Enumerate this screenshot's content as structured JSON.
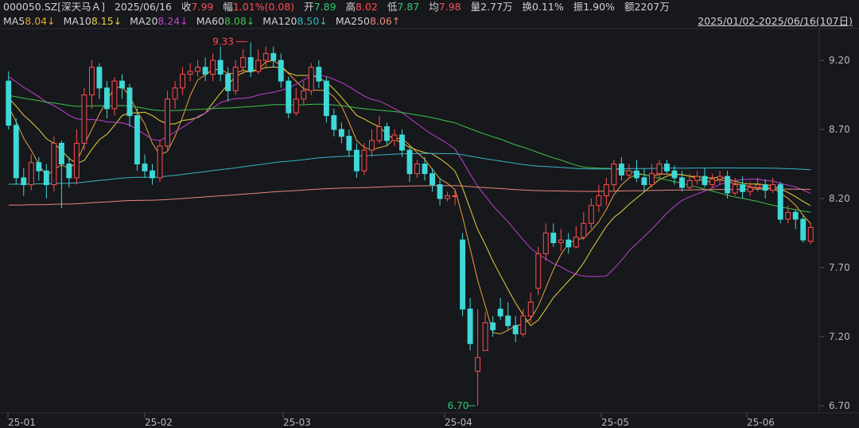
{
  "header": {
    "code": "000050.SZ[深天马Ａ]",
    "date": "2025/06/16",
    "close_label": "收",
    "close_value": "7.99",
    "change_label": "幅",
    "change_value": "1.01%(0.08)",
    "open_label": "开",
    "open_value": "7.89",
    "high_label": "高",
    "high_value": "8.02",
    "low_label": "低",
    "low_value": "7.87",
    "avg_label": "均",
    "avg_value": "7.98",
    "volume_label": "量",
    "volume_value": "2.77万",
    "turnover_label": "换",
    "turnover_value": "0.11%",
    "amplitude_label": "振",
    "amplitude_value": "1.90%",
    "amount_label": "额",
    "amount_value": "2207万"
  },
  "ma_legend": [
    {
      "name": "MA5",
      "value": "8.04↓",
      "color": "#e8a23a"
    },
    {
      "name": "MA10",
      "value": "8.15↓",
      "color": "#e6d23c"
    },
    {
      "name": "MA20",
      "value": "8.24↓",
      "color": "#c23fd0"
    },
    {
      "name": "MA60",
      "value": "8.08↓",
      "color": "#3ec24a"
    },
    {
      "name": "MA120",
      "value": "8.50↓",
      "color": "#35b6c8"
    },
    {
      "name": "MA250",
      "value": "8.06↑",
      "color": "#e8887a"
    }
  ],
  "date_range": "2025/01/02-2025/06/16(107日)",
  "colors": {
    "up": "#ff4d4f",
    "down": "#3fd8d8",
    "background": "#17181c",
    "grid": "#2a2c31"
  },
  "chart_data": {
    "type": "candlestick",
    "x_ticks": [
      "25-01",
      "25-02",
      "25-03",
      "25-04",
      "25-05",
      "25-06"
    ],
    "y_ticks": [
      "9.20",
      "8.70",
      "8.20",
      "7.70",
      "7.20",
      "6.70"
    ],
    "ylim": [
      6.68,
      9.35
    ],
    "annotations": [
      {
        "label": "9.33",
        "value": 9.33,
        "type": "high"
      },
      {
        "label": "6.70",
        "value": 6.7,
        "type": "low"
      }
    ],
    "candles": [
      [
        9.05,
        8.73,
        9.12,
        8.7
      ],
      [
        8.73,
        8.35,
        8.78,
        8.3
      ],
      [
        8.35,
        8.3,
        8.42,
        8.22
      ],
      [
        8.3,
        8.46,
        8.52,
        8.26
      ],
      [
        8.46,
        8.4,
        8.5,
        8.33
      ],
      [
        8.4,
        8.3,
        8.45,
        8.2
      ],
      [
        8.3,
        8.6,
        8.65,
        8.25
      ],
      [
        8.6,
        8.45,
        8.62,
        8.13
      ],
      [
        8.45,
        8.35,
        8.5,
        8.28
      ],
      [
        8.35,
        8.6,
        8.7,
        8.3
      ],
      [
        8.6,
        8.95,
        9.0,
        8.55
      ],
      [
        8.95,
        9.15,
        9.2,
        8.85
      ],
      [
        9.15,
        9.0,
        9.18,
        8.92
      ],
      [
        9.0,
        8.85,
        9.05,
        8.78
      ],
      [
        8.85,
        9.05,
        9.08,
        8.8
      ],
      [
        9.05,
        9.0,
        9.1,
        8.92
      ],
      [
        9.0,
        8.8,
        9.03,
        8.72
      ],
      [
        8.8,
        8.45,
        8.85,
        8.4
      ],
      [
        8.45,
        8.4,
        8.52,
        8.35
      ],
      [
        8.4,
        8.35,
        8.45,
        8.3
      ],
      [
        8.35,
        8.58,
        8.62,
        8.32
      ],
      [
        8.58,
        8.92,
        8.98,
        8.55
      ],
      [
        8.92,
        9.0,
        9.05,
        8.85
      ],
      [
        9.0,
        9.1,
        9.15,
        8.95
      ],
      [
        9.1,
        9.12,
        9.18,
        9.05
      ],
      [
        9.12,
        9.15,
        9.2,
        9.08
      ],
      [
        9.15,
        9.1,
        9.22,
        9.05
      ],
      [
        9.1,
        9.2,
        9.25,
        9.05
      ],
      [
        9.2,
        9.1,
        9.3,
        9.05
      ],
      [
        9.1,
        8.98,
        9.15,
        8.9
      ],
      [
        8.98,
        9.15,
        9.2,
        8.95
      ],
      [
        9.15,
        9.22,
        9.28,
        9.1
      ],
      [
        9.22,
        9.12,
        9.33,
        9.08
      ],
      [
        9.12,
        9.2,
        9.28,
        9.1
      ],
      [
        9.2,
        9.25,
        9.3,
        9.15
      ],
      [
        9.25,
        9.2,
        9.3,
        9.15
      ],
      [
        9.2,
        9.05,
        9.25,
        9.0
      ],
      [
        9.05,
        8.82,
        9.08,
        8.78
      ],
      [
        8.82,
        8.92,
        9.0,
        8.8
      ],
      [
        8.92,
        8.98,
        9.05,
        8.88
      ],
      [
        8.98,
        9.15,
        9.18,
        8.95
      ],
      [
        9.15,
        9.05,
        9.2,
        9.0
      ],
      [
        9.05,
        8.8,
        9.08,
        8.75
      ],
      [
        8.8,
        8.7,
        8.85,
        8.65
      ],
      [
        8.7,
        8.65,
        8.75,
        8.6
      ],
      [
        8.65,
        8.55,
        8.7,
        8.5
      ],
      [
        8.55,
        8.4,
        8.6,
        8.35
      ],
      [
        8.4,
        8.55,
        8.6,
        8.37
      ],
      [
        8.55,
        8.62,
        8.7,
        8.5
      ],
      [
        8.62,
        8.72,
        8.8,
        8.6
      ],
      [
        8.72,
        8.62,
        8.75,
        8.58
      ],
      [
        8.62,
        8.66,
        8.7,
        8.58
      ],
      [
        8.66,
        8.55,
        8.7,
        8.5
      ],
      [
        8.55,
        8.38,
        8.58,
        8.32
      ],
      [
        8.38,
        8.45,
        8.48,
        8.35
      ],
      [
        8.45,
        8.38,
        8.5,
        8.33
      ],
      [
        8.38,
        8.3,
        8.42,
        8.25
      ],
      [
        8.3,
        8.2,
        8.35,
        8.15
      ],
      [
        8.2,
        8.22,
        8.25,
        8.18
      ],
      [
        8.22,
        8.22,
        8.27,
        8.15
      ],
      [
        7.9,
        7.4,
        7.95,
        7.35
      ],
      [
        7.4,
        7.15,
        7.48,
        7.1
      ],
      [
        6.95,
        7.05,
        7.4,
        6.7
      ],
      [
        7.1,
        7.3,
        7.38,
        7.1
      ],
      [
        7.3,
        7.25,
        7.35,
        7.2
      ],
      [
        7.4,
        7.35,
        7.48,
        7.32
      ],
      [
        7.35,
        7.28,
        7.45,
        7.25
      ],
      [
        7.28,
        7.22,
        7.35,
        7.16
      ],
      [
        7.22,
        7.35,
        7.4,
        7.2
      ],
      [
        7.35,
        7.45,
        7.52,
        7.3
      ],
      [
        7.55,
        7.8,
        7.85,
        7.5
      ],
      [
        7.8,
        7.95,
        8.02,
        7.75
      ],
      [
        7.95,
        7.88,
        8.02,
        7.85
      ],
      [
        7.88,
        7.9,
        7.98,
        7.82
      ],
      [
        7.9,
        7.85,
        7.95,
        7.8
      ],
      [
        7.85,
        7.92,
        8.0,
        7.84
      ],
      [
        7.92,
        8.02,
        8.1,
        7.9
      ],
      [
        8.02,
        8.15,
        8.2,
        7.98
      ],
      [
        8.15,
        8.22,
        8.3,
        8.1
      ],
      [
        8.22,
        8.3,
        8.35,
        8.15
      ],
      [
        8.3,
        8.45,
        8.48,
        8.25
      ],
      [
        8.45,
        8.37,
        8.5,
        8.33
      ],
      [
        8.37,
        8.4,
        8.45,
        8.35
      ],
      [
        8.4,
        8.35,
        8.48,
        8.32
      ],
      [
        8.35,
        8.3,
        8.42,
        8.25
      ],
      [
        8.3,
        8.38,
        8.45,
        8.28
      ],
      [
        8.38,
        8.45,
        8.48,
        8.35
      ],
      [
        8.45,
        8.4,
        8.48,
        8.38
      ],
      [
        8.4,
        8.35,
        8.44,
        8.3
      ],
      [
        8.35,
        8.28,
        8.4,
        8.25
      ],
      [
        8.28,
        8.33,
        8.38,
        8.26
      ],
      [
        8.33,
        8.36,
        8.4,
        8.3
      ],
      [
        8.36,
        8.3,
        8.42,
        8.28
      ],
      [
        8.3,
        8.34,
        8.38,
        8.28
      ],
      [
        8.34,
        8.36,
        8.4,
        8.3
      ],
      [
        8.36,
        8.24,
        8.4,
        8.2
      ],
      [
        8.24,
        8.3,
        8.35,
        8.22
      ],
      [
        8.3,
        8.25,
        8.36,
        8.2
      ],
      [
        8.25,
        8.28,
        8.32,
        8.22
      ],
      [
        8.28,
        8.3,
        8.35,
        8.25
      ],
      [
        8.3,
        8.26,
        8.34,
        8.2
      ],
      [
        8.26,
        8.3,
        8.35,
        8.24
      ],
      [
        8.3,
        8.05,
        8.32,
        8.02
      ],
      [
        8.05,
        8.1,
        8.15,
        8.02
      ],
      [
        8.1,
        8.05,
        8.12,
        7.98
      ],
      [
        8.05,
        7.9,
        8.08,
        7.88
      ],
      [
        7.89,
        7.99,
        8.02,
        7.87
      ]
    ]
  }
}
